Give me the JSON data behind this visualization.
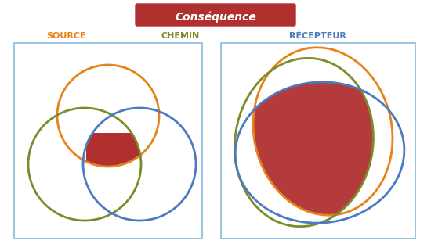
{
  "title": "Conséquence",
  "title_bg": "#b03030",
  "title_color": "#ffffff",
  "label_source": "SOURCE",
  "label_chemin": "CHEMIN",
  "label_recepteur": "RÉCEPTEUR",
  "color_source": "#e8821a",
  "color_chemin": "#7a8c2a",
  "color_recepteur": "#4a7abf",
  "color_intersection": "#b03030",
  "bg_color": "#ffffff",
  "box_edge_color": "#88bbdd",
  "lw": 2.0
}
